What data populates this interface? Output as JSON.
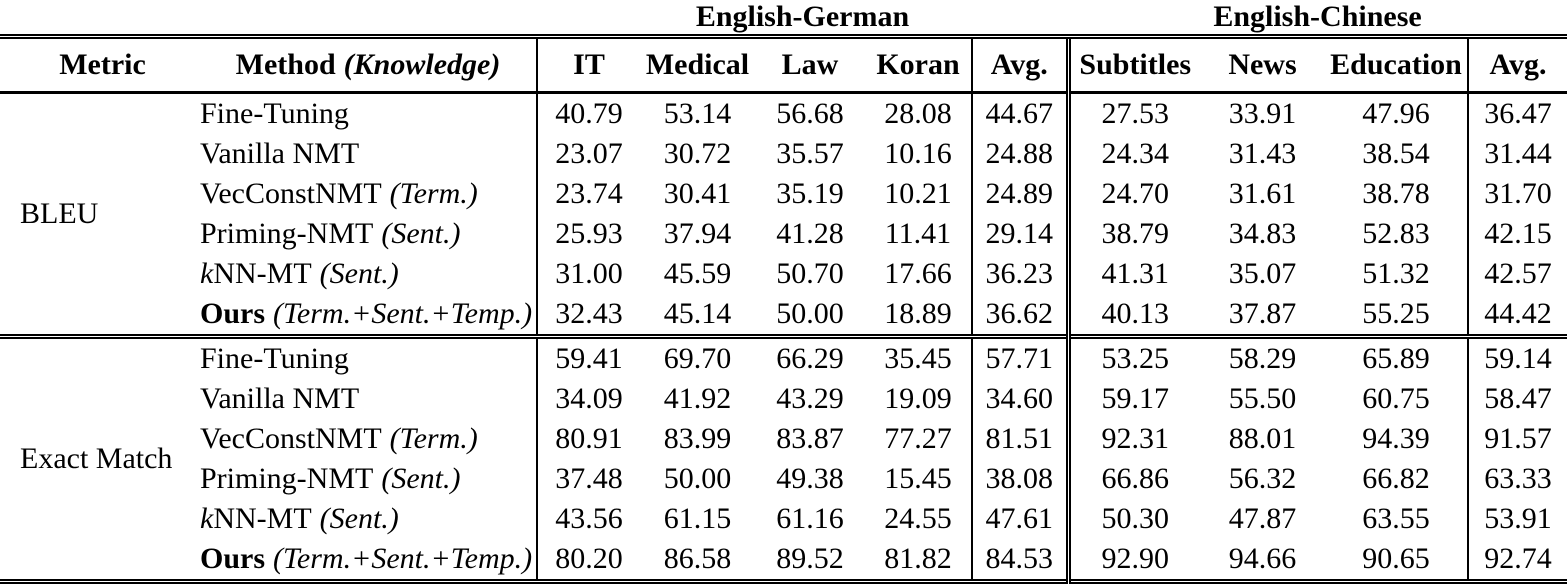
{
  "table": {
    "group_headers": [
      {
        "label": "English-German"
      },
      {
        "label": "English-Chinese"
      }
    ],
    "header": {
      "metric": "Metric",
      "method_main": "Method",
      "method_knowledge": "(Knowledge)",
      "cols": [
        "IT",
        "Medical",
        "Law",
        "Koran",
        "Avg.",
        "Subtitles",
        "News",
        "Education",
        "Avg."
      ]
    },
    "sections": [
      {
        "metric": "BLEU",
        "rows": [
          {
            "pre": "",
            "name": "Fine-Tuning",
            "bold": false,
            "knowledge": "",
            "values": [
              "40.79",
              "53.14",
              "56.68",
              "28.08",
              "44.67",
              "27.53",
              "33.91",
              "47.96",
              "36.47"
            ]
          },
          {
            "pre": "",
            "name": "Vanilla NMT",
            "bold": false,
            "knowledge": "",
            "values": [
              "23.07",
              "30.72",
              "35.57",
              "10.16",
              "24.88",
              "24.34",
              "31.43",
              "38.54",
              "31.44"
            ]
          },
          {
            "pre": "",
            "name": "VecConstNMT",
            "bold": false,
            "knowledge": "(Term.)",
            "values": [
              "23.74",
              "30.41",
              "35.19",
              "10.21",
              "24.89",
              "24.70",
              "31.61",
              "38.78",
              "31.70"
            ]
          },
          {
            "pre": "",
            "name": "Priming-NMT",
            "bold": false,
            "knowledge": "(Sent.)",
            "values": [
              "25.93",
              "37.94",
              "41.28",
              "11.41",
              "29.14",
              "38.79",
              "34.83",
              "52.83",
              "42.15"
            ]
          },
          {
            "pre": "k",
            "name": "NN-MT",
            "bold": false,
            "knowledge": "(Sent.)",
            "values": [
              "31.00",
              "45.59",
              "50.70",
              "17.66",
              "36.23",
              "41.31",
              "35.07",
              "51.32",
              "42.57"
            ]
          },
          {
            "pre": "",
            "name": "Ours",
            "bold": true,
            "knowledge": "(Term.+Sent.+Temp.)",
            "values": [
              "32.43",
              "45.14",
              "50.00",
              "18.89",
              "36.62",
              "40.13",
              "37.87",
              "55.25",
              "44.42"
            ]
          }
        ]
      },
      {
        "metric": "Exact Match",
        "rows": [
          {
            "pre": "",
            "name": "Fine-Tuning",
            "bold": false,
            "knowledge": "",
            "values": [
              "59.41",
              "69.70",
              "66.29",
              "35.45",
              "57.71",
              "53.25",
              "58.29",
              "65.89",
              "59.14"
            ]
          },
          {
            "pre": "",
            "name": "Vanilla NMT",
            "bold": false,
            "knowledge": "",
            "values": [
              "34.09",
              "41.92",
              "43.29",
              "19.09",
              "34.60",
              "59.17",
              "55.50",
              "60.75",
              "58.47"
            ]
          },
          {
            "pre": "",
            "name": "VecConstNMT",
            "bold": false,
            "knowledge": "(Term.)",
            "values": [
              "80.91",
              "83.99",
              "83.87",
              "77.27",
              "81.51",
              "92.31",
              "88.01",
              "94.39",
              "91.57"
            ]
          },
          {
            "pre": "",
            "name": "Priming-NMT",
            "bold": false,
            "knowledge": "(Sent.)",
            "values": [
              "37.48",
              "50.00",
              "49.38",
              "15.45",
              "38.08",
              "66.86",
              "56.32",
              "66.82",
              "63.33"
            ]
          },
          {
            "pre": "k",
            "name": "NN-MT",
            "bold": false,
            "knowledge": "(Sent.)",
            "values": [
              "43.56",
              "61.15",
              "61.16",
              "24.55",
              "47.61",
              "50.30",
              "47.87",
              "63.55",
              "53.91"
            ]
          },
          {
            "pre": "",
            "name": "Ours",
            "bold": true,
            "knowledge": "(Term.+Sent.+Temp.)",
            "values": [
              "80.20",
              "86.58",
              "89.52",
              "81.82",
              "84.53",
              "92.90",
              "94.66",
              "90.65",
              "92.74"
            ]
          }
        ]
      }
    ]
  }
}
